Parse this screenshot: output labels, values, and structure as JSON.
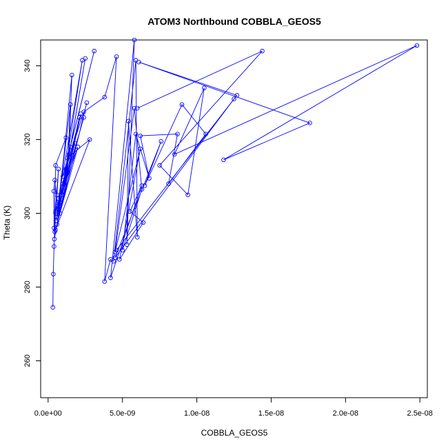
{
  "chart_data": {
    "type": "line",
    "title": "ATOM3 Northbound COBBLA_GEOS5",
    "xlabel": "COBBLA_GEOS5",
    "ylabel": "Theta (K)",
    "xlim": [
      -5e-10,
      2.55e-08
    ],
    "ylim": [
      250,
      347
    ],
    "x_ticks": [
      0,
      5e-09,
      1e-08,
      1.5e-08,
      2e-08,
      2.5e-08
    ],
    "x_tick_labels": [
      "0.0e+00",
      "5.0e-09",
      "1.0e-08",
      "1.5e-08",
      "2.0e-08",
      "2.5e-08"
    ],
    "y_ticks": [
      260,
      280,
      300,
      320,
      340
    ],
    "y_tick_labels": [
      "260",
      "280",
      "300",
      "320",
      "340"
    ],
    "grid": false,
    "series": [
      {
        "color": "#0000ff",
        "marker": "open-circle",
        "points": [
          [
            3.2e-10,
            274.5
          ],
          [
            3.5e-10,
            283.5
          ],
          [
            4e-10,
            291
          ],
          [
            4.5e-10,
            295
          ],
          [
            5e-10,
            300
          ],
          [
            6e-10,
            305
          ],
          [
            7e-10,
            312
          ],
          [
            4e-10,
            296
          ],
          [
            3.8e-10,
            306
          ],
          [
            4.5e-10,
            309
          ],
          [
            6.5e-10,
            302
          ],
          [
            8e-10,
            303
          ],
          [
            1e-09,
            308
          ],
          [
            1.2e-09,
            312
          ],
          [
            1.5e-09,
            318
          ],
          [
            4.2e-10,
            293
          ],
          [
            5e-10,
            313
          ],
          [
            1.2e-09,
            320.5
          ],
          [
            5.5e-10,
            298
          ],
          [
            1.3e-09,
            311
          ],
          [
            1.5e-09,
            329.5
          ],
          [
            6e-10,
            299
          ],
          [
            1.4e-09,
            316
          ],
          [
            1.6e-09,
            337.5
          ],
          [
            7e-10,
            301
          ],
          [
            1.8e-09,
            319
          ],
          [
            5e-10,
            300.5
          ],
          [
            2e-09,
            318
          ],
          [
            6e-10,
            297
          ],
          [
            2.2e-09,
            327
          ],
          [
            7e-10,
            304
          ],
          [
            2.3e-09,
            341.5
          ],
          [
            9e-10,
            305
          ],
          [
            2.4e-09,
            326
          ],
          [
            1e-09,
            306
          ],
          [
            2.5e-09,
            342
          ],
          [
            1.1e-09,
            308
          ],
          [
            2.1e-09,
            326
          ],
          [
            8e-10,
            300
          ],
          [
            2.6e-09,
            330
          ],
          [
            5e-10,
            295.5
          ],
          [
            2.8e-09,
            320
          ],
          [
            1.3e-09,
            315
          ],
          [
            3.1e-09,
            344
          ],
          [
            1e-09,
            310
          ],
          [
            2.4e-09,
            327.5
          ],
          [
            3.8e-09,
            331.5
          ],
          [
            4.6e-09,
            342.5
          ],
          [
            3.8e-09,
            281.5
          ],
          [
            4.2e-09,
            287.5
          ],
          [
            4.4e-09,
            287
          ],
          [
            5.9e-09,
            341.5
          ],
          [
            6e-09,
            293.5
          ],
          [
            5.4e-09,
            325
          ],
          [
            5.3e-09,
            291.5
          ],
          [
            5.8e-09,
            347
          ],
          [
            4.2e-09,
            282.5
          ],
          [
            6.3e-09,
            307.5
          ],
          [
            5.5e-09,
            300.5
          ],
          [
            6.4e-09,
            297.5
          ],
          [
            4.8e-09,
            287.5
          ],
          [
            6.2e-09,
            317.5
          ],
          [
            4.5e-09,
            289.5
          ],
          [
            5.8e-09,
            328.5
          ],
          [
            6.3e-09,
            306.5
          ],
          [
            5e-09,
            290
          ],
          [
            5.9e-09,
            321.5
          ],
          [
            6.8e-09,
            309.5
          ],
          [
            6.2e-09,
            321
          ],
          [
            8.7e-09,
            321.5
          ],
          [
            8.1e-09,
            308
          ],
          [
            1.06e-08,
            321.5
          ],
          [
            9e-09,
            329.5
          ],
          [
            6.5e-09,
            307.5
          ],
          [
            7.6e-09,
            319.5
          ],
          [
            4.5e-09,
            288
          ],
          [
            1.25e-08,
            331
          ],
          [
            4.6e-09,
            290
          ],
          [
            1.27e-08,
            332
          ],
          [
            6.1e-09,
            341
          ],
          [
            1.76e-08,
            324.5
          ],
          [
            1.18e-08,
            314.5
          ],
          [
            2.48e-08,
            345.5
          ],
          [
            8.5e-09,
            316
          ],
          [
            1.05e-08,
            334
          ],
          [
            9.4e-09,
            305
          ],
          [
            7.5e-09,
            313
          ],
          [
            1.44e-08,
            344
          ],
          [
            6e-09,
            328.5
          ]
        ]
      }
    ]
  }
}
